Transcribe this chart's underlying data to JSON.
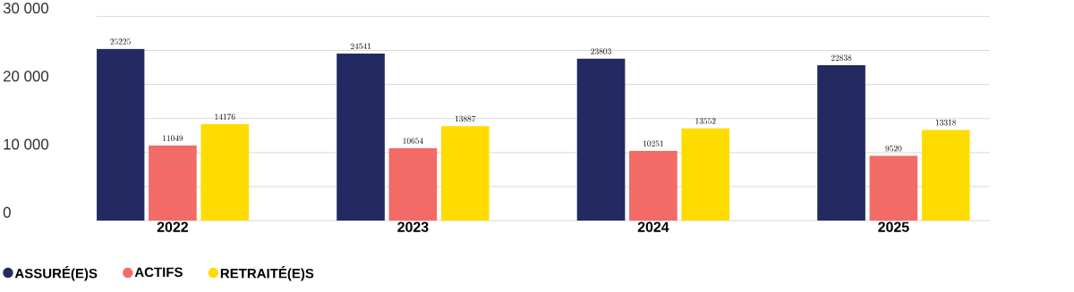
{
  "chart_data": {
    "type": "bar",
    "categories": [
      "2022",
      "2023",
      "2024",
      "2025"
    ],
    "series": [
      {
        "name": "ASSURÉ(E)S",
        "color": "#232a62",
        "values": [
          25225,
          24541,
          23803,
          22838
        ]
      },
      {
        "name": "ACTIFS",
        "color": "#f26b66",
        "values": [
          11049,
          10654,
          10251,
          9520
        ]
      },
      {
        "name": "RETRAITÉ(E)S",
        "color": "#ffdc00",
        "values": [
          14176,
          13887,
          13552,
          13318
        ]
      }
    ],
    "ylim": [
      0,
      30000
    ],
    "yticks": [
      0,
      {
        "value": 5000,
        "label": null
      },
      {
        "value": 10000,
        "label": "10 000"
      },
      {
        "value": 15000,
        "label": null
      },
      {
        "value": 20000,
        "label": "20 000"
      },
      {
        "value": 25000,
        "label": null
      },
      {
        "value": 30000,
        "label": "30 000"
      }
    ],
    "grid": "y",
    "legend": "bottom left",
    "data_labels": true
  }
}
